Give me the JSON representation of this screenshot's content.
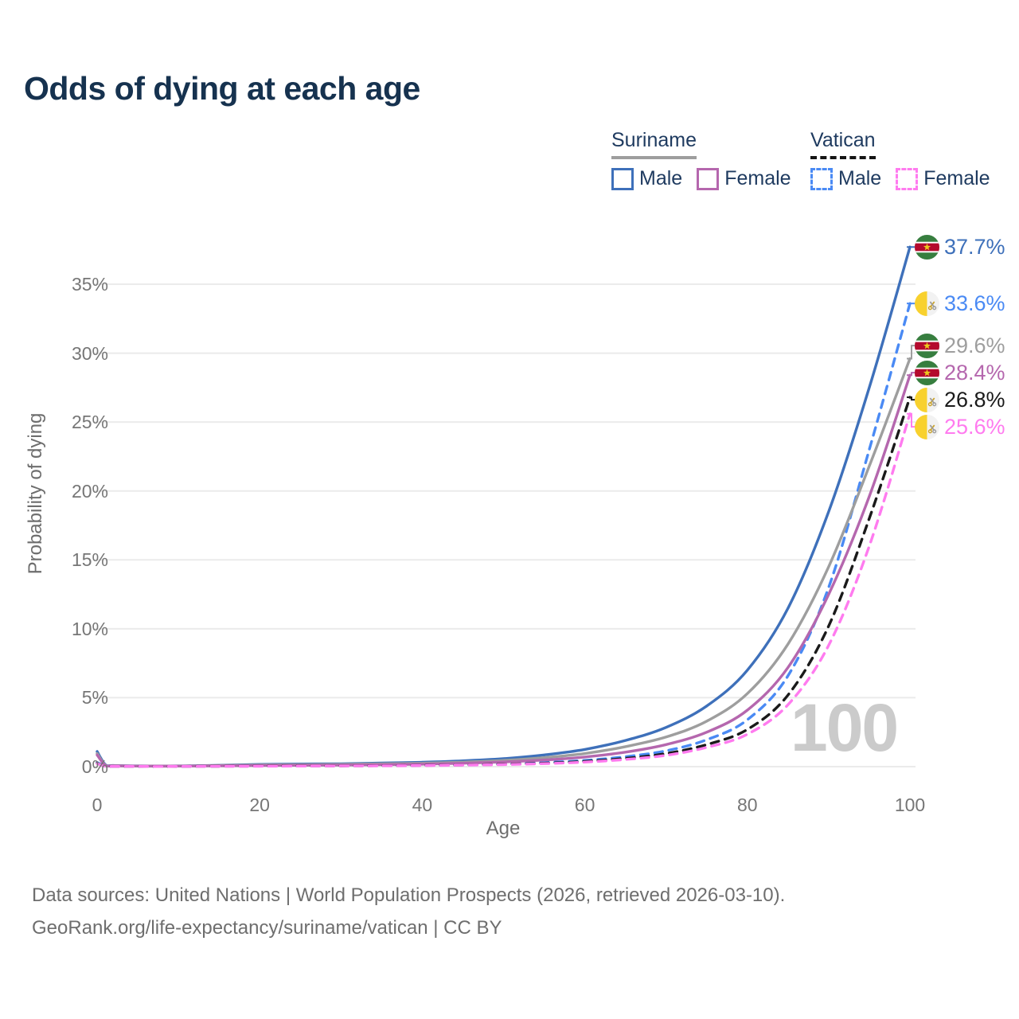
{
  "title": "Odds of dying at each age",
  "legend": {
    "groups": [
      {
        "name": "Suriname",
        "line_style": "solid",
        "line_color": "#9e9e9e",
        "items": [
          {
            "label": "Male",
            "color": "#3e70ba"
          },
          {
            "label": "Female",
            "color": "#b567ae"
          }
        ]
      },
      {
        "name": "Vatican",
        "line_style": "dashed",
        "line_color": "#141414",
        "items": [
          {
            "label": "Male",
            "color": "#4a8af4"
          },
          {
            "label": "Female",
            "color": "#ff7bef"
          }
        ]
      }
    ]
  },
  "chart_data": {
    "type": "line",
    "title": "Odds of dying at each age",
    "xlabel": "Age",
    "ylabel": "Probability of dying",
    "xlim": [
      0,
      100
    ],
    "ylim": [
      0,
      35
    ],
    "x_ticks": [
      0,
      20,
      40,
      60,
      80,
      100
    ],
    "y_ticks": [
      0,
      5,
      10,
      15,
      20,
      25,
      30,
      35
    ],
    "y_tick_suffix": "%",
    "grid": "horizontal",
    "legend_position": "top-right",
    "x": [
      0,
      1,
      2,
      5,
      10,
      15,
      20,
      25,
      30,
      35,
      40,
      45,
      50,
      55,
      60,
      65,
      70,
      75,
      80,
      85,
      90,
      95,
      100
    ],
    "series": [
      {
        "name": "Suriname Male",
        "country": "Suriname",
        "sex": "Male",
        "color": "#3e70ba",
        "dash": false,
        "flag": "suriname",
        "end_label": "37.7%",
        "end_value": 37.7,
        "values": [
          1.1,
          0.15,
          0.08,
          0.05,
          0.05,
          0.1,
          0.16,
          0.19,
          0.21,
          0.26,
          0.32,
          0.42,
          0.58,
          0.85,
          1.25,
          1.9,
          2.85,
          4.4,
          7.0,
          11.5,
          18.5,
          27.5,
          37.7
        ]
      },
      {
        "name": "Vatican Male",
        "country": "Vatican",
        "sex": "Male",
        "color": "#4a8af4",
        "dash": true,
        "flag": "vatican",
        "end_label": "33.6%",
        "end_value": 33.6,
        "values": [
          0.3,
          0.04,
          0.03,
          0.02,
          0.02,
          0.04,
          0.05,
          0.06,
          0.07,
          0.08,
          0.1,
          0.14,
          0.2,
          0.3,
          0.45,
          0.72,
          1.15,
          1.95,
          3.4,
          6.6,
          13.0,
          23.0,
          33.6
        ]
      },
      {
        "name": "Suriname Total",
        "country": "Suriname",
        "sex": "Both",
        "color": "#9e9e9e",
        "dash": false,
        "flag": "suriname",
        "end_label": "29.6%",
        "end_value": 29.6,
        "values": [
          0.95,
          0.12,
          0.07,
          0.04,
          0.04,
          0.08,
          0.12,
          0.14,
          0.16,
          0.2,
          0.25,
          0.33,
          0.45,
          0.65,
          0.95,
          1.45,
          2.15,
          3.3,
          5.3,
          8.9,
          14.5,
          21.8,
          29.6
        ]
      },
      {
        "name": "Suriname Female",
        "country": "Suriname",
        "sex": "Female",
        "color": "#b567ae",
        "dash": false,
        "flag": "suriname",
        "end_label": "28.4%",
        "end_value": 28.4,
        "values": [
          0.85,
          0.1,
          0.06,
          0.04,
          0.04,
          0.06,
          0.08,
          0.1,
          0.11,
          0.14,
          0.18,
          0.25,
          0.34,
          0.48,
          0.7,
          1.05,
          1.6,
          2.5,
          4.1,
          7.2,
          12.5,
          19.6,
          28.4
        ]
      },
      {
        "name": "Vatican Total",
        "country": "Vatican",
        "sex": "Both",
        "color": "#1a1a1a",
        "dash": true,
        "flag": "vatican",
        "end_label": "26.8%",
        "end_value": 26.8,
        "values": [
          0.25,
          0.03,
          0.02,
          0.02,
          0.02,
          0.03,
          0.04,
          0.05,
          0.06,
          0.07,
          0.09,
          0.12,
          0.17,
          0.25,
          0.38,
          0.6,
          0.95,
          1.6,
          2.7,
          5.2,
          10.2,
          18.0,
          26.8
        ]
      },
      {
        "name": "Vatican Female",
        "country": "Vatican",
        "sex": "Female",
        "color": "#ff7bef",
        "dash": true,
        "flag": "vatican",
        "end_label": "25.6%",
        "end_value": 25.6,
        "values": [
          0.22,
          0.03,
          0.02,
          0.015,
          0.015,
          0.025,
          0.03,
          0.04,
          0.05,
          0.06,
          0.08,
          0.11,
          0.15,
          0.22,
          0.33,
          0.52,
          0.82,
          1.4,
          2.35,
          4.5,
          8.8,
          16.0,
          25.6
        ]
      }
    ]
  },
  "watermark": "100",
  "footer": {
    "line1": "Data sources: United Nations | World Population Prospects (2026, retrieved 2026-03-10).",
    "line2": "GeoRank.org/life-expectancy/suriname/vatican | CC BY"
  }
}
